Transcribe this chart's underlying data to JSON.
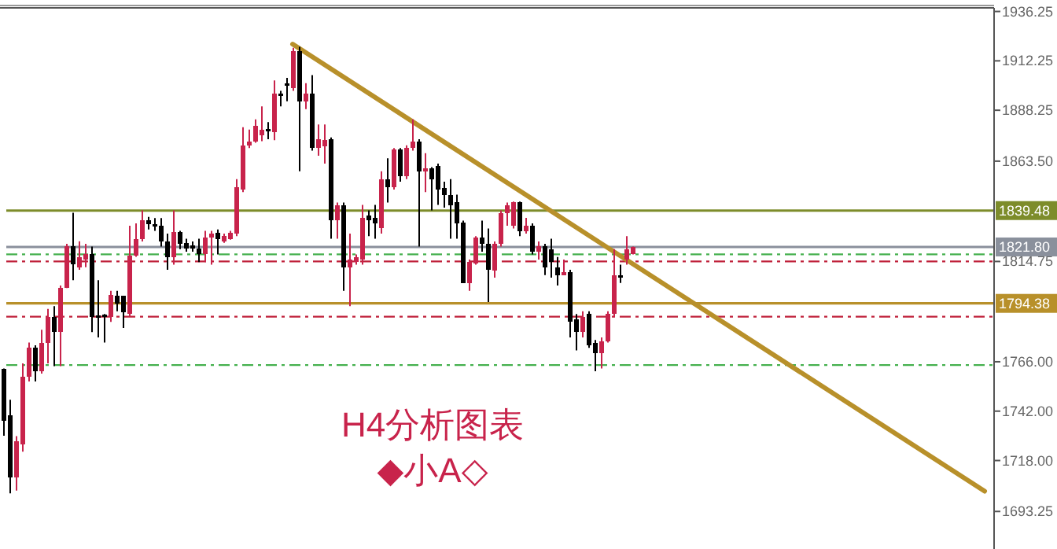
{
  "chart_data": {
    "type": "candlestick",
    "categories": [
      null,
      null,
      null,
      null,
      null,
      null,
      null,
      null,
      null,
      null,
      null,
      null,
      null,
      null,
      null,
      null,
      null,
      null,
      null,
      null,
      null,
      null,
      null,
      null,
      null,
      null,
      null,
      null,
      null,
      null,
      null,
      null,
      null,
      null,
      null,
      null,
      null,
      null,
      null,
      null,
      null,
      null,
      null,
      null,
      null,
      null,
      null,
      null,
      null,
      null,
      null,
      null,
      null,
      null,
      null,
      null,
      null,
      null,
      null,
      null,
      null,
      null,
      null,
      null,
      null,
      null,
      null,
      null,
      null,
      null,
      null,
      null,
      null,
      null,
      null,
      null,
      null,
      null,
      null,
      null,
      null,
      null,
      null,
      null,
      null,
      null,
      null,
      null,
      null,
      null,
      null,
      null,
      null,
      null,
      null,
      null,
      null,
      null,
      null,
      null,
      null,
      null,
      null,
      null,
      null,
      null,
      null,
      null,
      null,
      null,
      null,
      null,
      null,
      null,
      null,
      null,
      null,
      null,
      null,
      null,
      null,
      null,
      null,
      null,
      null,
      null,
      null,
      null,
      null,
      null,
      null,
      null,
      null,
      null,
      null,
      null,
      null,
      null,
      null,
      null,
      null,
      null,
      null,
      null,
      null,
      null,
      null,
      null,
      null,
      null,
      null,
      null,
      null,
      null,
      null,
      null,
      null,
      null
    ],
    "ohlc": [
      [
        1762.7,
        1762.7,
        1730,
        1737.5
      ],
      [
        1740,
        1747.5,
        1702,
        1709.7
      ],
      [
        1709.7,
        1729.9,
        1703.4,
        1727.4
      ],
      [
        1726,
        1765.2,
        1722.3,
        1758.9
      ],
      [
        1758.9,
        1775.3,
        1756.4,
        1772.8
      ],
      [
        1772.8,
        1774,
        1756.4,
        1761.4
      ],
      [
        1761.4,
        1781.6,
        1760.2,
        1775.3
      ],
      [
        1775.3,
        1791.7,
        1765.2,
        1787.9
      ],
      [
        1787.9,
        1793,
        1763.9,
        1780.4
      ],
      [
        1780.4,
        1803.1,
        1763.9,
        1801.8
      ],
      [
        1801.8,
        1823.3,
        1801.8,
        1822.1
      ],
      [
        1822.1,
        1838.4,
        1805.6,
        1813.2
      ],
      [
        1812,
        1824.6,
        1810.7,
        1817
      ],
      [
        1815.7,
        1823.3,
        1811.9,
        1818.2
      ],
      [
        1818.2,
        1822,
        1780.4,
        1787.9
      ],
      [
        1788.4,
        1805.6,
        1777.8,
        1787.4
      ],
      [
        1788.9,
        1789.2,
        1775.3,
        1787.9
      ],
      [
        1787.9,
        1800.5,
        1785.4,
        1798.5
      ],
      [
        1798,
        1800.5,
        1790.5,
        1794.2
      ],
      [
        1798,
        1798,
        1782.4,
        1789.9
      ],
      [
        1789.2,
        1832.1,
        1787.9,
        1817.7
      ],
      [
        1817.7,
        1833.3,
        1817,
        1825.8
      ],
      [
        1825.8,
        1839.6,
        1824.5,
        1834.6
      ],
      [
        1834.6,
        1836.4,
        1830.3,
        1832.8
      ],
      [
        1832.8,
        1835.8,
        1829.6,
        1831.8
      ],
      [
        1832,
        1835.8,
        1822,
        1824.5
      ],
      [
        1824.5,
        1828.3,
        1810.7,
        1817
      ],
      [
        1817,
        1839.6,
        1813.2,
        1829.1
      ],
      [
        1829.1,
        1829.6,
        1820.7,
        1823.3
      ],
      [
        1823.8,
        1825.8,
        1819.5,
        1821.2
      ],
      [
        1822.5,
        1824.5,
        1819.5,
        1821.2
      ],
      [
        1821.2,
        1825.8,
        1814.4,
        1818.2
      ],
      [
        1818.2,
        1829.6,
        1814.4,
        1826.3
      ],
      [
        1826.3,
        1829.6,
        1813.2,
        1828.3
      ],
      [
        1828.8,
        1830.3,
        1818.2,
        1825.8
      ],
      [
        1824.5,
        1828.3,
        1823.8,
        1827
      ],
      [
        1825.8,
        1829.6,
        1825.3,
        1828.8
      ],
      [
        1828.3,
        1854.8,
        1827,
        1851
      ],
      [
        1849.7,
        1880,
        1848.5,
        1871.2
      ],
      [
        1871.2,
        1878.8,
        1869.9,
        1873.2
      ],
      [
        1873.2,
        1883.8,
        1872.4,
        1880.8
      ],
      [
        1876.2,
        1890.1,
        1873.2,
        1878.8
      ],
      [
        1879.3,
        1882.5,
        1874.2,
        1878
      ],
      [
        1877.5,
        1902.7,
        1873.7,
        1896.4
      ],
      [
        1896.4,
        1897.7,
        1890.1,
        1895.1
      ],
      [
        1901.4,
        1904,
        1892.6,
        1900.2
      ],
      [
        1898.9,
        1918.6,
        1897.7,
        1917.1
      ],
      [
        1917.1,
        1919.1,
        1858.6,
        1892.6
      ],
      [
        1892.6,
        1901.4,
        1888.8,
        1896.4
      ],
      [
        1896.4,
        1905.3,
        1868.6,
        1869.9
      ],
      [
        1869.9,
        1881.3,
        1866.1,
        1874.2
      ],
      [
        1870.7,
        1881.3,
        1862.3,
        1873.7
      ],
      [
        1874.2,
        1875,
        1825.8,
        1834.6
      ],
      [
        1834.6,
        1843.4,
        1825.8,
        1842.2
      ],
      [
        1842.2,
        1843.4,
        1800.5,
        1811.9
      ],
      [
        1811.9,
        1828.3,
        1793,
        1815.7
      ],
      [
        1814.4,
        1818.2,
        1813.2,
        1817
      ],
      [
        1815.7,
        1842.2,
        1813.2,
        1835.9
      ],
      [
        1837.1,
        1839.6,
        1827,
        1834.6
      ],
      [
        1835.9,
        1842.2,
        1825.8,
        1833.3
      ],
      [
        1830.8,
        1858.6,
        1828.3,
        1854.8
      ],
      [
        1854.8,
        1864.9,
        1843.4,
        1851
      ],
      [
        1851,
        1869.9,
        1849.7,
        1869.2
      ],
      [
        1869.2,
        1869.9,
        1853.5,
        1856.1
      ],
      [
        1856.1,
        1871.2,
        1854.8,
        1869.9
      ],
      [
        1869.9,
        1883.8,
        1868.6,
        1873.2
      ],
      [
        1873.2,
        1874.2,
        1822,
        1858.6
      ],
      [
        1858.6,
        1867.4,
        1848.5,
        1859.9
      ],
      [
        1859.9,
        1860.6,
        1839.6,
        1854.8
      ],
      [
        1861.1,
        1862.3,
        1842.2,
        1849.7
      ],
      [
        1850.5,
        1853.5,
        1840.9,
        1847.2
      ],
      [
        1847.2,
        1854.8,
        1825.8,
        1842.2
      ],
      [
        1843.4,
        1847.2,
        1825.8,
        1833.3
      ],
      [
        1833.8,
        1834.6,
        1804.3,
        1804.3
      ],
      [
        1804.3,
        1815.7,
        1800.5,
        1814.4
      ],
      [
        1813.9,
        1827,
        1813.2,
        1826.3
      ],
      [
        1826.3,
        1834.6,
        1819.5,
        1823.3
      ],
      [
        1823.3,
        1830.8,
        1795,
        1810.7
      ],
      [
        1810.2,
        1824.5,
        1806.9,
        1823.3
      ],
      [
        1823.3,
        1839.6,
        1822,
        1838.4
      ],
      [
        1838.4,
        1843.4,
        1832.1,
        1842.2
      ],
      [
        1832.1,
        1843.9,
        1830.8,
        1843.4
      ],
      [
        1843.4,
        1843.9,
        1827,
        1829.6
      ],
      [
        1829.6,
        1835.9,
        1828.3,
        1832.1
      ],
      [
        1832.1,
        1833.3,
        1818.2,
        1819.5
      ],
      [
        1819.5,
        1824.5,
        1815.7,
        1822
      ],
      [
        1822,
        1823.3,
        1808.1,
        1811.9
      ],
      [
        1820.7,
        1825.8,
        1806.9,
        1814.4
      ],
      [
        1811.9,
        1816.9,
        1803.1,
        1808.1
      ],
      [
        1808.1,
        1815.7,
        1808.1,
        1809.4
      ],
      [
        1809.4,
        1810.7,
        1777.8,
        1785.4
      ],
      [
        1786.7,
        1789.2,
        1771.5,
        1780.4
      ],
      [
        1780.4,
        1790.5,
        1777.8,
        1787.9
      ],
      [
        1789.2,
        1790.5,
        1772.8,
        1774
      ],
      [
        1775.3,
        1776.6,
        1761.4,
        1770.3
      ],
      [
        1770.3,
        1777.8,
        1762.7,
        1775.8
      ],
      [
        1775.8,
        1790.5,
        1775.3,
        1789.2
      ],
      [
        1789.2,
        1820.7,
        1787.9,
        1808.1
      ],
      [
        1808.1,
        1813.2,
        1804.3,
        1806.9
      ],
      [
        1815.7,
        1827,
        1813.2,
        1820.7
      ],
      [
        1818.2,
        1822,
        1818.2,
        1821.8
      ],
      null,
      null,
      null,
      null,
      null,
      null,
      null,
      null,
      null,
      null,
      null,
      null,
      null,
      null,
      null,
      null,
      null,
      null,
      null,
      null,
      null,
      null,
      null,
      null,
      null,
      null,
      null,
      null,
      null,
      null,
      null,
      null,
      null,
      null,
      null,
      null,
      null,
      null,
      null,
      null,
      null,
      null,
      null,
      null,
      null,
      null,
      null,
      null,
      null,
      null,
      null,
      null,
      null,
      null,
      null,
      null,
      null
    ],
    "series": [
      {
        "type": "line",
        "color": "#b8902a",
        "values": [
          null,
          null,
          null,
          null,
          null,
          null,
          null,
          null,
          null,
          null,
          null,
          null,
          null,
          null,
          null,
          null,
          null,
          null,
          null,
          null,
          null,
          null,
          null,
          null,
          null,
          null,
          null,
          null,
          null,
          null,
          null,
          null,
          null,
          null,
          null,
          null,
          null,
          null,
          null,
          null,
          null,
          null,
          null,
          null,
          null,
          null,
          1920.4,
          null,
          null,
          null,
          null,
          null,
          null,
          null,
          null,
          null,
          null,
          null,
          null,
          null,
          null,
          null,
          null,
          null,
          null,
          null,
          null,
          null,
          null,
          null,
          null,
          null,
          null,
          null,
          null,
          null,
          null,
          null,
          null,
          null,
          null,
          null,
          null,
          null,
          null,
          null,
          null,
          null,
          null,
          null,
          null,
          null,
          null,
          null,
          null,
          null,
          null,
          null,
          null,
          null,
          null,
          null,
          null,
          null,
          null,
          null,
          null,
          null,
          null,
          null,
          null,
          null,
          null,
          null,
          null,
          null,
          null,
          null,
          null,
          null,
          null,
          null,
          null,
          null,
          null,
          null,
          null,
          null,
          null,
          null,
          null,
          null,
          null,
          null,
          null,
          null,
          null,
          null,
          null,
          null,
          null,
          null,
          null,
          null,
          null,
          null,
          null,
          null,
          null,
          null,
          null,
          null,
          null,
          null,
          null,
          null,
          1703.1,
          null
        ]
      }
    ],
    "ylim": [
      1675,
      1938
    ],
    "yticks": [
      1936.25,
      1912.25,
      1888.25,
      {
        "value": 1863.5,
        "label": "1863.50"
      },
      {
        "value": 1814.75,
        "label": "1814.75"
      },
      {
        "value": 1766,
        "label": "1766.00"
      },
      {
        "value": 1742,
        "label": "1742.00"
      },
      {
        "value": 1718,
        "label": "1718.00"
      },
      1693.25
    ],
    "tick_labels": "y",
    "ref_lines": [
      {
        "axis": "y",
        "value": 1839.48,
        "label": "1839.48",
        "color": "#7d8c2a",
        "line_style": "solid"
      },
      {
        "axis": "y",
        "value": 1821.8,
        "label": "1821.80",
        "color": "#8a909c",
        "line_style": "solid"
      },
      {
        "axis": "y",
        "value": 1794.38,
        "label": "1794.38",
        "color": "#b8902a",
        "line_style": "solid"
      },
      {
        "axis": "y",
        "value": 1818.2,
        "color": "#45b04e",
        "line_style": "dashed"
      },
      {
        "axis": "y",
        "value": 1814.75,
        "color": "#c0203a",
        "line_style": "dashed"
      },
      {
        "axis": "y",
        "value": 1787.9,
        "color": "#c0203a",
        "line_style": "dashed"
      },
      {
        "axis": "y",
        "value": 1764.4,
        "color": "#45b04e",
        "line_style": "dashed"
      }
    ],
    "annotations": [
      "H4分析图表",
      "◆小A◇"
    ]
  }
}
